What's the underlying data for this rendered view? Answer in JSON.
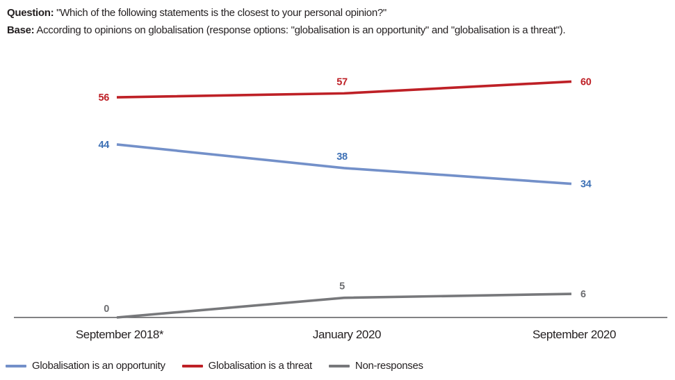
{
  "header": {
    "question_label": "Question:",
    "question_text": " \"Which of the following statements is the closest to your personal opinion?\"",
    "base_label": "Base:",
    "base_text": " According to opinions on globalisation (response options: \"globalisation is an opportunity\" and \"globalisation is a threat\")."
  },
  "chart_data": {
    "type": "line",
    "categories": [
      "September 2018*",
      "January 2020",
      "September 2020"
    ],
    "series": [
      {
        "name": "Globalisation is an opportunity",
        "values": [
          44,
          38,
          34
        ],
        "color": "#7390c9",
        "label_color": "#3d70b5"
      },
      {
        "name": "Globalisation is a threat",
        "values": [
          56,
          57,
          60
        ],
        "color": "#be2026",
        "label_color": "#be2026"
      },
      {
        "name": "Non-responses",
        "values": [
          0,
          5,
          6
        ],
        "color": "#77787b",
        "label_color": "#6d6e71"
      }
    ],
    "title": "",
    "xlabel": "",
    "ylabel": "",
    "ylim": [
      0,
      66
    ],
    "grid": false,
    "legend_position": "bottom",
    "axis_color": "#58595b",
    "text_color": "#231f20"
  }
}
